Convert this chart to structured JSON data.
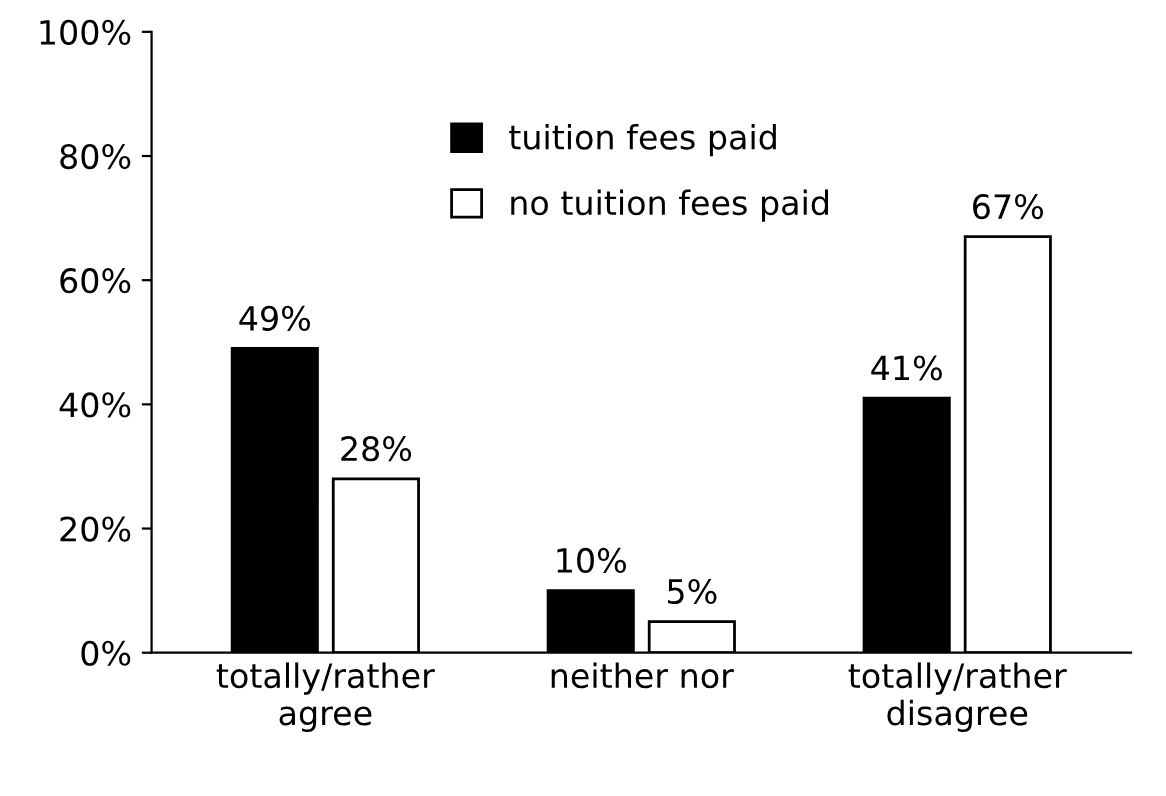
{
  "chart_data": {
    "type": "bar",
    "categories": [
      "totally/rather\nagree",
      "neither nor",
      "totally/rather\ndisagree"
    ],
    "series": [
      {
        "name": "tuition fees paid",
        "color": "#000000",
        "values": [
          49,
          10,
          41
        ],
        "value_labels": [
          "49%",
          "10%",
          "41%"
        ]
      },
      {
        "name": "no tuition fees paid",
        "color": "#ffffff",
        "values": [
          28,
          5,
          67
        ],
        "value_labels": [
          "28%",
          "5%",
          "67%"
        ]
      }
    ],
    "ylim": [
      0,
      100
    ],
    "yticks": [
      {
        "value": 0,
        "label": "0%"
      },
      {
        "value": 20,
        "label": "20%"
      },
      {
        "value": 40,
        "label": "40%"
      },
      {
        "value": 60,
        "label": "60%"
      },
      {
        "value": 80,
        "label": "80%"
      },
      {
        "value": 100,
        "label": "100%"
      }
    ],
    "grid": false,
    "legend": "top"
  }
}
